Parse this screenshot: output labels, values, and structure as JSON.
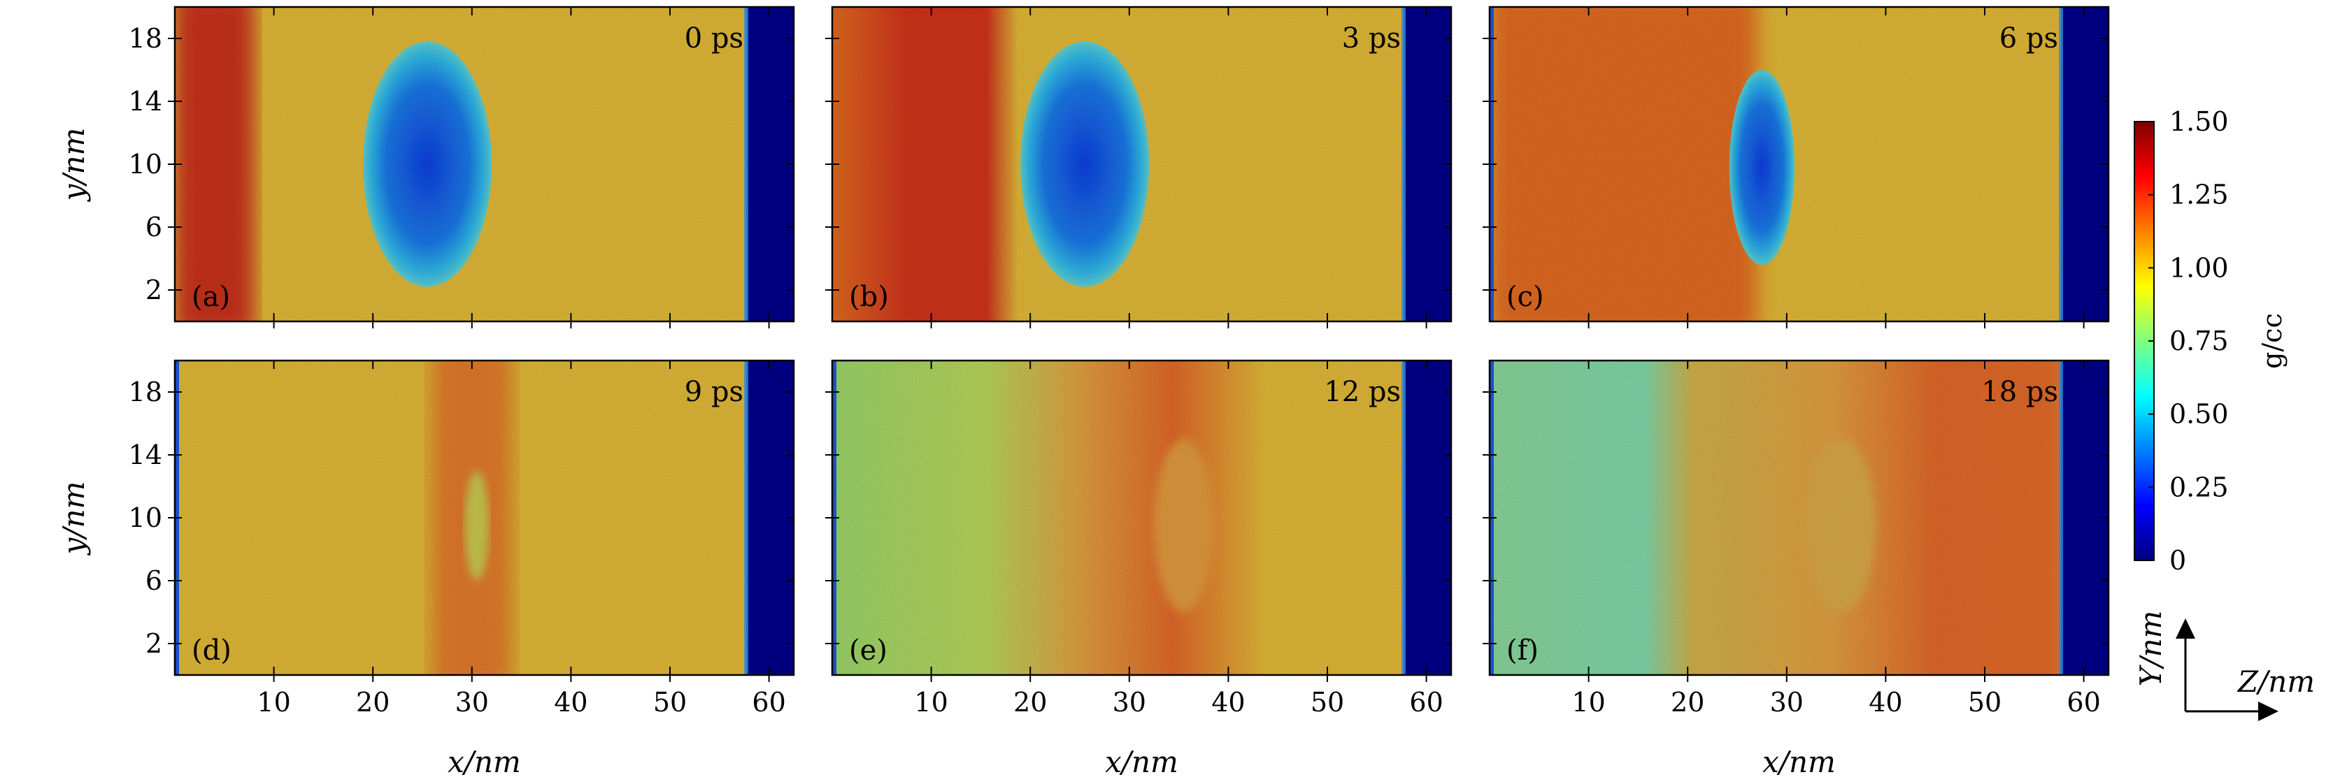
{
  "chart_data": {
    "type": "heatmap",
    "x_axis": {
      "label": "x/nm",
      "ticks": [
        10,
        20,
        30,
        40,
        50,
        60
      ],
      "range": [
        0,
        62.5
      ]
    },
    "y_axis": {
      "label": "y/nm",
      "ticks": [
        2,
        6,
        10,
        14,
        18
      ],
      "range": [
        0,
        20
      ]
    },
    "colorbar": {
      "label": "g/cc",
      "range": [
        0,
        1.5
      ],
      "ticks": [
        "0",
        "0.25",
        "0.50",
        "0.75",
        "1.00",
        "1.25",
        "1.50"
      ],
      "colormap": "jet"
    },
    "coordinate_indicator": {
      "vertical": "Y/nm",
      "horizontal": "Z/nm"
    },
    "panels": [
      {
        "letter": "(a)",
        "time": "0 ps"
      },
      {
        "letter": "(b)",
        "time": "3 ps"
      },
      {
        "letter": "(c)",
        "time": "6 ps"
      },
      {
        "letter": "(d)",
        "time": "9 ps"
      },
      {
        "letter": "(e)",
        "time": "12 ps"
      },
      {
        "letter": "(f)",
        "time": "18 ps"
      }
    ]
  }
}
